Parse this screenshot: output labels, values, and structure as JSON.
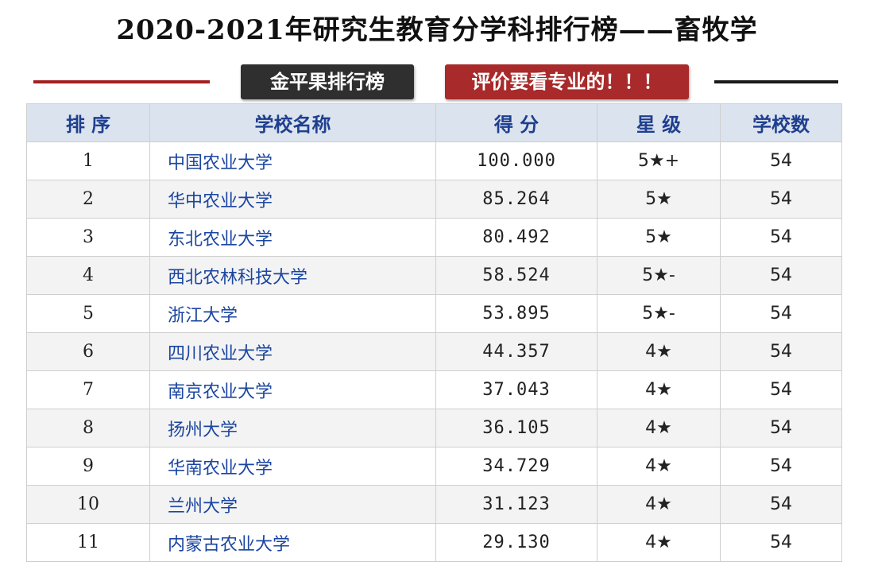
{
  "title": "2020-2021年研究生教育分学科排行榜——畜牧学",
  "badges": {
    "left": "金平果排行榜",
    "right": "评价要看专业的！！！"
  },
  "colors": {
    "header_bg": "#dbe3ee",
    "header_text": "#1f3f8f",
    "school_link": "#1b45a0",
    "badge_red": "#a82a2a",
    "badge_dark": "#2f2f2f"
  },
  "table": {
    "headers": [
      "排 序",
      "学校名称",
      "得 分",
      "星 级",
      "学校数"
    ],
    "rows": [
      {
        "rank": "1",
        "school": "中国农业大学",
        "score": "100.000",
        "stars": "5★+",
        "count": "54"
      },
      {
        "rank": "2",
        "school": "华中农业大学",
        "score": "85.264",
        "stars": "5★",
        "count": "54"
      },
      {
        "rank": "3",
        "school": "东北农业大学",
        "score": "80.492",
        "stars": "5★",
        "count": "54"
      },
      {
        "rank": "4",
        "school": "西北农林科技大学",
        "score": "58.524",
        "stars": "5★-",
        "count": "54"
      },
      {
        "rank": "5",
        "school": "浙江大学",
        "score": "53.895",
        "stars": "5★-",
        "count": "54"
      },
      {
        "rank": "6",
        "school": "四川农业大学",
        "score": "44.357",
        "stars": "4★",
        "count": "54"
      },
      {
        "rank": "7",
        "school": "南京农业大学",
        "score": "37.043",
        "stars": "4★",
        "count": "54"
      },
      {
        "rank": "8",
        "school": "扬州大学",
        "score": "36.105",
        "stars": "4★",
        "count": "54"
      },
      {
        "rank": "9",
        "school": "华南农业大学",
        "score": "34.729",
        "stars": "4★",
        "count": "54"
      },
      {
        "rank": "10",
        "school": "兰州大学",
        "score": "31.123",
        "stars": "4★",
        "count": "54"
      },
      {
        "rank": "11",
        "school": "内蒙古农业大学",
        "score": "29.130",
        "stars": "4★",
        "count": "54"
      }
    ]
  }
}
